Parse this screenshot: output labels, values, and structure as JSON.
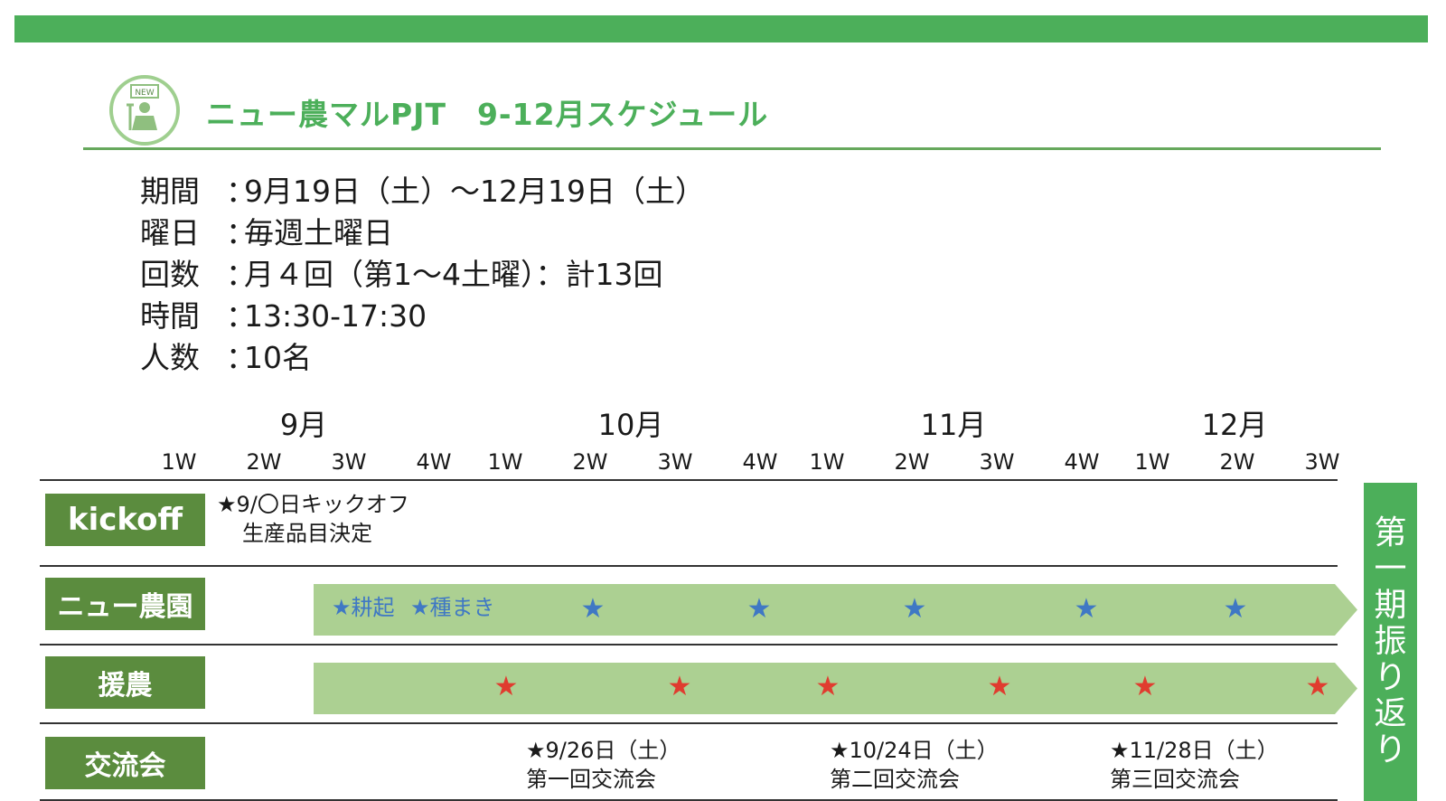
{
  "title": "ニュー農マルPJT　9-12月スケジュール",
  "logo": {
    "badge_text": "NEW"
  },
  "info": [
    {
      "label": "期間",
      "sep": "：",
      "value": "9月19日（土）～12月19日（土）"
    },
    {
      "label": "曜日",
      "sep": "：",
      "value": "毎週土曜日"
    },
    {
      "label": "回数",
      "sep": "：",
      "value": "月４回（第1～4土曜）：計13回"
    },
    {
      "label": "時間",
      "sep": "：",
      "value": "13:30-17:30"
    },
    {
      "label": "人数",
      "sep": "：",
      "value": "10名"
    }
  ],
  "months": [
    "9月",
    "10月",
    "11月",
    "12月"
  ],
  "weeks": [
    "1W",
    "2W",
    "3W",
    "4W",
    "1W",
    "2W",
    "3W",
    "4W",
    "1W",
    "2W",
    "3W",
    "4W",
    "1W",
    "2W",
    "3W"
  ],
  "rows": {
    "kickoff": {
      "label": "kickoff",
      "event_line1": "★9/〇日キックオフ",
      "event_line2": "生産品目決定"
    },
    "farm": {
      "label": "ニュー農園",
      "note1": "★耕起",
      "note2": "★種まき",
      "star_count": 5,
      "star_color": "#3f78c4"
    },
    "support": {
      "label": "援農",
      "star_count": 6,
      "star_color": "#e03c2f"
    },
    "exchange": {
      "label": "交流会",
      "events": [
        {
          "date": "★9/26日（土）",
          "name": "第一回交流会"
        },
        {
          "date": "★10/24日（土）",
          "name": "第二回交流会"
        },
        {
          "date": "★11/28日（土）",
          "name": "第三回交流会"
        }
      ]
    }
  },
  "review": "第一期振り返り",
  "colors": {
    "accent": "#4caf5a",
    "label_bg": "#5b8c3e",
    "arrow": "#acd092"
  }
}
